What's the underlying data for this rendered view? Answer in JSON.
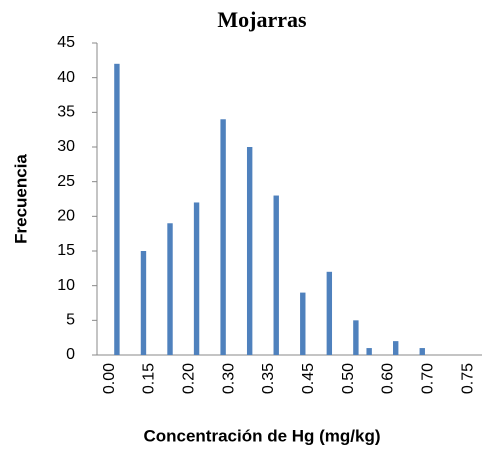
{
  "chart_data": {
    "type": "bar",
    "title": "Mojarras",
    "x_label": "Concentración de Hg (mg/kg)",
    "y_label": "Frecuencia",
    "categories": [
      "0.00",
      null,
      null,
      "0.15",
      null,
      null,
      "0.20",
      null,
      null,
      "0.30",
      null,
      null,
      "0.35",
      null,
      null,
      "0.45",
      null,
      null,
      "0.50",
      null,
      null,
      "0.60",
      null,
      null,
      "0.70",
      null,
      null,
      "0.75",
      null
    ],
    "values": [
      0,
      42,
      0,
      15,
      0,
      19,
      0,
      22,
      0,
      34,
      0,
      30,
      0,
      23,
      0,
      9,
      0,
      12,
      0,
      5,
      1,
      0,
      2,
      0,
      1,
      0,
      0,
      0,
      0
    ],
    "color": "#4f81bd",
    "ylim": [
      0,
      45
    ],
    "yticks": [
      0,
      5,
      10,
      15,
      20,
      25,
      30,
      35,
      40,
      45
    ],
    "grid": false
  }
}
